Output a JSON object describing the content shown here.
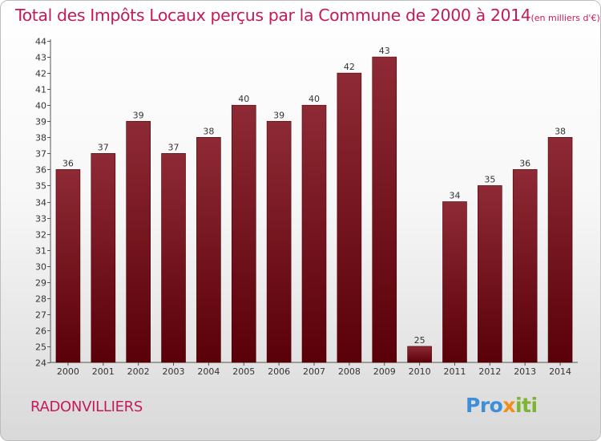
{
  "chart_data": {
    "type": "bar",
    "title": "Total des Impôts Locaux perçus par la Commune de 2000 à 2014",
    "unit_note": "(en milliers d'€)",
    "categories": [
      "2000",
      "2001",
      "2002",
      "2003",
      "2004",
      "2005",
      "2006",
      "2007",
      "2008",
      "2009",
      "2010",
      "2011",
      "2012",
      "2013",
      "2014"
    ],
    "values": [
      36,
      37,
      39,
      37,
      38,
      40,
      39,
      40,
      42,
      43,
      25,
      34,
      35,
      36,
      38
    ],
    "ylim": [
      24,
      44
    ],
    "yticks": [
      24,
      25,
      26,
      27,
      28,
      29,
      30,
      31,
      32,
      33,
      34,
      35,
      36,
      37,
      38,
      39,
      40,
      41,
      42,
      43,
      44
    ],
    "xlabel": "",
    "ylabel": "",
    "bar_color": "#7a1520",
    "grid": false
  },
  "commune": "RADONVILLIERS",
  "brand": {
    "parts": [
      "Pro",
      "x",
      "iti"
    ],
    "colors": [
      "#3f8fd8",
      "#f28c1a",
      "#7db533"
    ]
  }
}
